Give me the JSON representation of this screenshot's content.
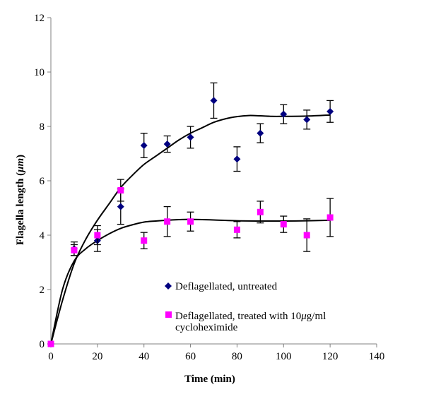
{
  "chart_data": {
    "type": "scatter",
    "title": "",
    "xlabel": "Time (min)",
    "ylabel_main": "Flagella length (",
    "ylabel_unit": "μm",
    "ylabel_close": ")",
    "xlim": [
      0,
      140
    ],
    "ylim": [
      0,
      12
    ],
    "xticks": [
      0,
      20,
      40,
      60,
      80,
      100,
      120,
      140
    ],
    "yticks": [
      0,
      2,
      4,
      6,
      8,
      10,
      12
    ],
    "xtick_labels": [
      "0",
      "20",
      "40",
      "60",
      "80",
      "100",
      "120",
      "140"
    ],
    "ytick_labels": [
      "0",
      "2",
      "4",
      "6",
      "8",
      "10",
      "12"
    ],
    "grid": false,
    "legend_position": "inside-bottom-center",
    "series": [
      {
        "name": "Deflagellated, untreated",
        "marker": "diamond",
        "color": "#000080",
        "x": [
          0,
          10,
          20,
          30,
          40,
          50,
          60,
          70,
          80,
          90,
          100,
          110,
          120
        ],
        "y": [
          0,
          3.5,
          3.8,
          5.05,
          7.3,
          7.35,
          7.6,
          8.95,
          6.8,
          7.75,
          8.45,
          8.25,
          8.55
        ],
        "err": [
          0,
          0.25,
          0.4,
          0.65,
          0.45,
          0.3,
          0.4,
          0.65,
          0.45,
          0.35,
          0.35,
          0.35,
          0.4
        ],
        "fit": [
          [
            0,
            0
          ],
          [
            5,
            1.6
          ],
          [
            10,
            2.95
          ],
          [
            15,
            3.85
          ],
          [
            20,
            4.55
          ],
          [
            25,
            5.15
          ],
          [
            30,
            5.75
          ],
          [
            35,
            6.2
          ],
          [
            40,
            6.6
          ],
          [
            45,
            6.9
          ],
          [
            50,
            7.2
          ],
          [
            55,
            7.5
          ],
          [
            60,
            7.75
          ],
          [
            65,
            7.95
          ],
          [
            70,
            8.15
          ],
          [
            75,
            8.28
          ],
          [
            80,
            8.36
          ],
          [
            85,
            8.4
          ],
          [
            90,
            8.39
          ],
          [
            95,
            8.37
          ],
          [
            100,
            8.37
          ],
          [
            110,
            8.38
          ],
          [
            120,
            8.42
          ]
        ]
      },
      {
        "name": "Deflagellated, treated with 10",
        "name_mu": "μ",
        "name_rest": "g/ml",
        "name_line2": "cycloheximide",
        "marker": "square",
        "color": "#ff00ff",
        "x": [
          0,
          10,
          20,
          30,
          40,
          50,
          60,
          80,
          90,
          100,
          110,
          120
        ],
        "y": [
          0,
          3.45,
          4.0,
          5.65,
          3.8,
          4.5,
          4.5,
          4.2,
          4.85,
          4.4,
          4.0,
          4.65
        ],
        "err": [
          0,
          0.2,
          0.35,
          0.4,
          0.3,
          0.55,
          0.35,
          0.3,
          0.4,
          0.3,
          0.6,
          0.7
        ],
        "fit": [
          [
            0,
            0
          ],
          [
            5,
            2.0
          ],
          [
            10,
            3.05
          ],
          [
            15,
            3.5
          ],
          [
            20,
            3.8
          ],
          [
            25,
            4.05
          ],
          [
            30,
            4.25
          ],
          [
            35,
            4.38
          ],
          [
            40,
            4.48
          ],
          [
            45,
            4.52
          ],
          [
            50,
            4.55
          ],
          [
            55,
            4.57
          ],
          [
            60,
            4.58
          ],
          [
            70,
            4.56
          ],
          [
            80,
            4.53
          ],
          [
            90,
            4.52
          ],
          [
            100,
            4.52
          ],
          [
            110,
            4.53
          ],
          [
            120,
            4.55
          ]
        ]
      }
    ]
  }
}
